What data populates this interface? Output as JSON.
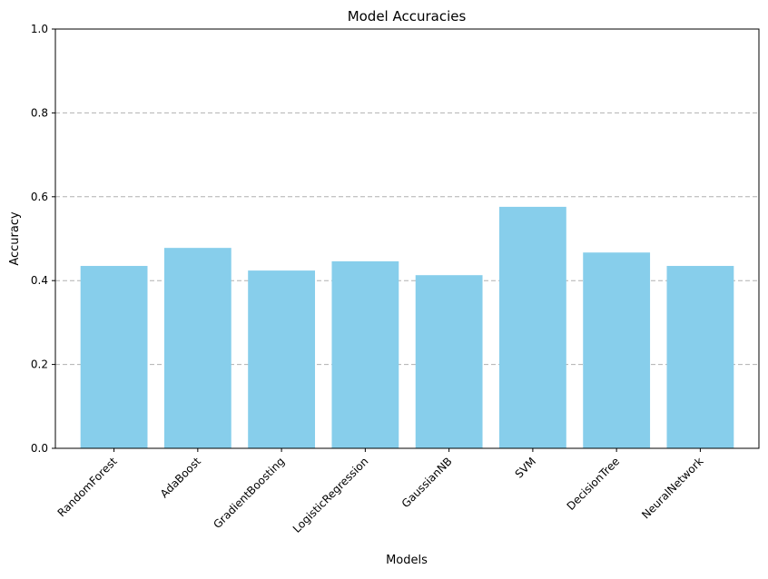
{
  "chart_data": {
    "type": "bar",
    "title": "Model Accuracies",
    "xlabel": "Models",
    "ylabel": "Accuracy",
    "categories": [
      "RandomForest",
      "AdaBoost",
      "GradientBoosting",
      "LogisticRegression",
      "GaussianNB",
      "SVM",
      "DecisionTree",
      "NeuralNetwork"
    ],
    "values": [
      0.435,
      0.478,
      0.424,
      0.446,
      0.413,
      0.576,
      0.467,
      0.435
    ],
    "ylim": [
      0,
      1
    ],
    "yticks": [
      "0.0",
      "0.2",
      "0.4",
      "0.6",
      "0.8",
      "1.0"
    ],
    "grid": "y-dashed",
    "bar_color": "#87ceeb",
    "legend": "none"
  }
}
